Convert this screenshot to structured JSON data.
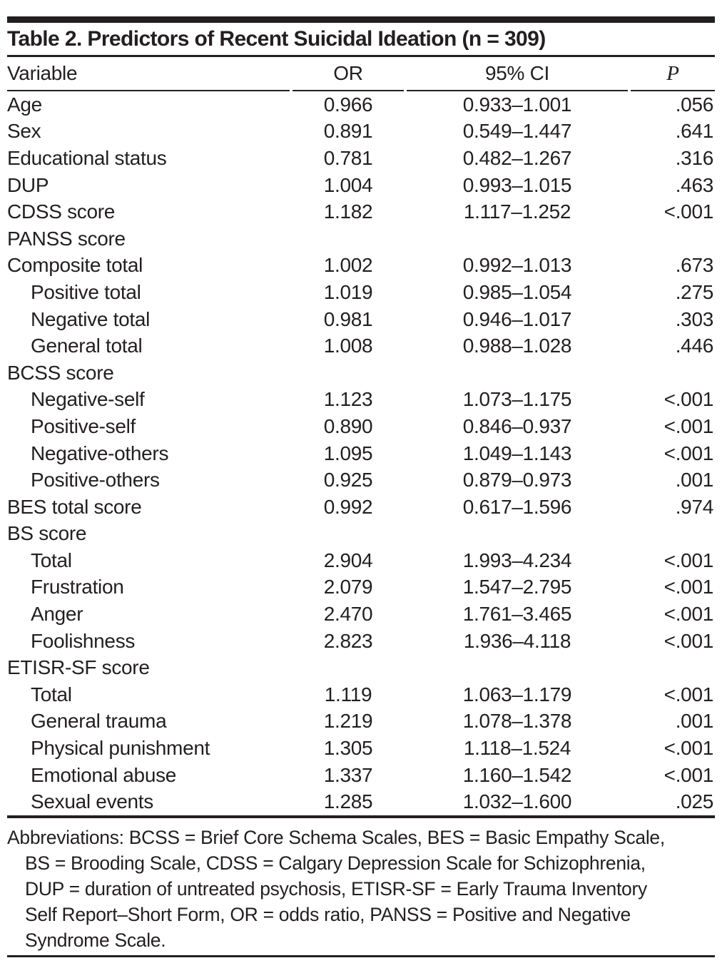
{
  "page": {
    "background_color": "#ffffff",
    "text_color": "#231f20",
    "rule_color": "#231f20"
  },
  "table": {
    "title": "Table 2. Predictors of Recent Suicidal Ideation (n = 309)",
    "columns": [
      "Variable",
      "OR",
      "95% CI",
      "P"
    ],
    "rows": [
      {
        "label": "Age",
        "indent": 0,
        "or": "0.966",
        "ci": "0.933–1.001",
        "p": ".056"
      },
      {
        "label": "Sex",
        "indent": 0,
        "or": "0.891",
        "ci": "0.549–1.447",
        "p": ".641"
      },
      {
        "label": "Educational status",
        "indent": 0,
        "or": "0.781",
        "ci": "0.482–1.267",
        "p": ".316"
      },
      {
        "label": "DUP",
        "indent": 0,
        "or": "1.004",
        "ci": "0.993–1.015",
        "p": ".463"
      },
      {
        "label": "CDSS score",
        "indent": 0,
        "or": "1.182",
        "ci": "1.117–1.252",
        "p": "<.001"
      },
      {
        "label": "PANSS score",
        "indent": 0,
        "or": "",
        "ci": "",
        "p": ""
      },
      {
        "label": "Composite total",
        "indent": 0,
        "or": "1.002",
        "ci": "0.992–1.013",
        "p": ".673"
      },
      {
        "label": "Positive total",
        "indent": 1,
        "or": "1.019",
        "ci": "0.985–1.054",
        "p": ".275"
      },
      {
        "label": "Negative total",
        "indent": 1,
        "or": "0.981",
        "ci": "0.946–1.017",
        "p": ".303"
      },
      {
        "label": "General total",
        "indent": 1,
        "or": "1.008",
        "ci": "0.988–1.028",
        "p": ".446"
      },
      {
        "label": "BCSS score",
        "indent": 0,
        "or": "",
        "ci": "",
        "p": ""
      },
      {
        "label": "Negative-self",
        "indent": 1,
        "or": "1.123",
        "ci": "1.073–1.175",
        "p": "<.001"
      },
      {
        "label": "Positive-self",
        "indent": 1,
        "or": "0.890",
        "ci": "0.846–0.937",
        "p": "<.001"
      },
      {
        "label": "Negative-others",
        "indent": 1,
        "or": "1.095",
        "ci": "1.049–1.143",
        "p": "<.001"
      },
      {
        "label": "Positive-others",
        "indent": 1,
        "or": "0.925",
        "ci": "0.879–0.973",
        "p": ".001"
      },
      {
        "label": "BES total score",
        "indent": 0,
        "or": "0.992",
        "ci": "0.617–1.596",
        "p": ".974"
      },
      {
        "label": "BS score",
        "indent": 0,
        "or": "",
        "ci": "",
        "p": ""
      },
      {
        "label": "Total",
        "indent": 1,
        "or": "2.904",
        "ci": "1.993–4.234",
        "p": "<.001"
      },
      {
        "label": "Frustration",
        "indent": 1,
        "or": "2.079",
        "ci": "1.547–2.795",
        "p": "<.001"
      },
      {
        "label": "Anger",
        "indent": 1,
        "or": "2.470",
        "ci": "1.761–3.465",
        "p": "<.001"
      },
      {
        "label": "Foolishness",
        "indent": 1,
        "or": "2.823",
        "ci": "1.936–4.118",
        "p": "<.001"
      },
      {
        "label": "ETISR-SF score",
        "indent": 0,
        "or": "",
        "ci": "",
        "p": ""
      },
      {
        "label": "Total",
        "indent": 1,
        "or": "1.119",
        "ci": "1.063–1.179",
        "p": "<.001"
      },
      {
        "label": "General trauma",
        "indent": 1,
        "or": "1.219",
        "ci": "1.078–1.378",
        "p": ".001"
      },
      {
        "label": "Physical punishment",
        "indent": 1,
        "or": "1.305",
        "ci": "1.118–1.524",
        "p": "<.001"
      },
      {
        "label": "Emotional abuse",
        "indent": 1,
        "or": "1.337",
        "ci": "1.160–1.542",
        "p": "<.001"
      },
      {
        "label": "Sexual events",
        "indent": 1,
        "or": "1.285",
        "ci": "1.032–1.600",
        "p": ".025"
      }
    ],
    "footnote_lines": [
      "Abbreviations: BCSS = Brief Core Schema Scales, BES = Basic Empathy Scale,",
      "BS = Brooding Scale, CDSS = Calgary Depression Scale for Schizophrenia,",
      "DUP = duration of untreated psychosis, ETISR-SF = Early Trauma Inventory",
      "Self Report–Short Form, OR = odds ratio, PANSS = Positive and Negative",
      "Syndrome Scale."
    ]
  }
}
